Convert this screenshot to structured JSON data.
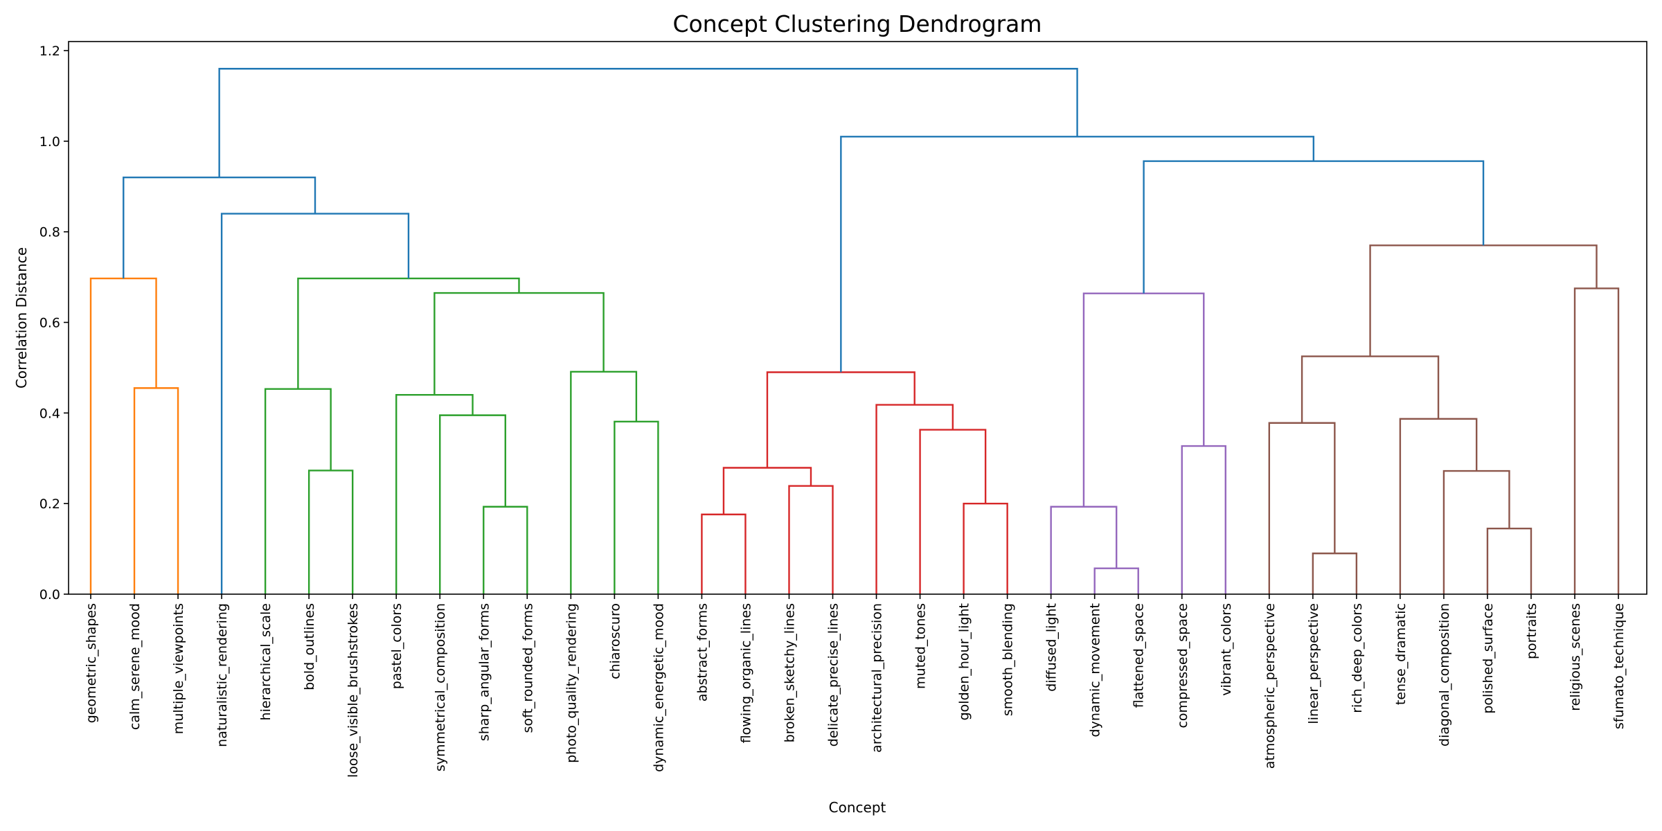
{
  "chart_data": {
    "type": "dendrogram",
    "title": "Concept Clustering Dendrogram",
    "xlabel": "Concept",
    "ylabel": "Correlation Distance",
    "ylim": [
      0,
      1.22
    ],
    "yticks": [
      "0.0",
      "0.2",
      "0.4",
      "0.6",
      "0.8",
      "1.0",
      "1.2"
    ],
    "ytick_values": [
      0.0,
      0.2,
      0.4,
      0.6,
      0.8,
      1.0,
      1.2
    ],
    "grid": false,
    "leaves": [
      "geometric_shapes",
      "calm_serene_mood",
      "multiple_viewpoints",
      "naturalistic_rendering",
      "hierarchical_scale",
      "bold_outlines",
      "loose_visible_brushstrokes",
      "pastel_colors",
      "symmetrical_composition",
      "sharp_angular_forms",
      "soft_rounded_forms",
      "photo_quality_rendering",
      "chiaroscuro",
      "dynamic_energetic_mood",
      "abstract_forms",
      "flowing_organic_lines",
      "broken_sketchy_lines",
      "delicate_precise_lines",
      "architectural_precision",
      "muted_tones",
      "golden_hour_light",
      "smooth_blending",
      "diffused_light",
      "dynamic_movement",
      "flattened_space",
      "compressed_space",
      "vibrant_colors",
      "atmospheric_perspective",
      "linear_perspective",
      "rich_deep_colors",
      "tense_dramatic",
      "diagonal_composition",
      "polished_surface",
      "portraits",
      "religious_scenes",
      "sfumato_technique"
    ],
    "colors": {
      "orange": "#ff7f0e",
      "green": "#2ca02c",
      "red": "#d62728",
      "purple": "#9467bd",
      "brown": "#8c564b",
      "blue": "#1f77b4"
    },
    "merges": [
      {
        "a": "geometric_shapes",
        "b": "calm_serene_mood",
        "note": "leaf0"
      },
      {
        "id": "n_calm_multi",
        "left": "calm_serene_mood",
        "right": "multiple_viewpoints",
        "height": 0.455,
        "color": "orange"
      },
      {
        "id": "n_orange",
        "left": "geometric_shapes",
        "right": "n_calm_multi",
        "height": 0.697,
        "color": "orange"
      },
      {
        "id": "n_bold_loose",
        "left": "bold_outlines",
        "right": "loose_visible_brushstrokes",
        "height": 0.273,
        "color": "green"
      },
      {
        "id": "n_hier",
        "left": "hierarchical_scale",
        "right": "n_bold_loose",
        "height": 0.453,
        "color": "green"
      },
      {
        "id": "n_sharp_soft",
        "left": "sharp_angular_forms",
        "right": "soft_rounded_forms",
        "height": 0.193,
        "color": "green"
      },
      {
        "id": "n_sym",
        "left": "symmetrical_composition",
        "right": "n_sharp_soft",
        "height": 0.395,
        "color": "green"
      },
      {
        "id": "n_pastel",
        "left": "pastel_colors",
        "right": "n_sym",
        "height": 0.44,
        "color": "green"
      },
      {
        "id": "n_chiaro_dyn",
        "left": "chiaroscuro",
        "right": "dynamic_energetic_mood",
        "height": 0.381,
        "color": "green"
      },
      {
        "id": "n_photo",
        "left": "photo_quality_rendering",
        "right": "n_chiaro_dyn",
        "height": 0.491,
        "color": "green"
      },
      {
        "id": "n_g_right",
        "left": "n_pastel",
        "right": "n_photo",
        "height": 0.665,
        "color": "green"
      },
      {
        "id": "n_green",
        "left": "n_hier",
        "right": "n_g_right",
        "height": 0.697,
        "color": "green"
      },
      {
        "id": "n_natural",
        "left": "naturalistic_rendering",
        "right": "n_green",
        "height": 0.84,
        "color": "blue"
      },
      {
        "id": "n_left",
        "left": "n_orange",
        "right": "n_natural",
        "height": 0.92,
        "color": "blue"
      },
      {
        "id": "n_abs_flow",
        "left": "abstract_forms",
        "right": "flowing_organic_lines",
        "height": 0.176,
        "color": "red"
      },
      {
        "id": "n_broken_delicate",
        "left": "broken_sketchy_lines",
        "right": "delicate_precise_lines",
        "height": 0.239,
        "color": "red"
      },
      {
        "id": "n_lines",
        "left": "n_abs_flow",
        "right": "n_broken_delicate",
        "height": 0.279,
        "color": "red"
      },
      {
        "id": "n_golden_smooth",
        "left": "golden_hour_light",
        "right": "smooth_blending",
        "height": 0.2,
        "color": "red"
      },
      {
        "id": "n_muted",
        "left": "muted_tones",
        "right": "n_golden_smooth",
        "height": 0.363,
        "color": "red"
      },
      {
        "id": "n_arch",
        "left": "architectural_precision",
        "right": "n_muted",
        "height": 0.418,
        "color": "red"
      },
      {
        "id": "n_red",
        "left": "n_lines",
        "right": "n_arch",
        "height": 0.49,
        "color": "red"
      },
      {
        "id": "n_dynmov_flat",
        "left": "dynamic_movement",
        "right": "flattened_space",
        "height": 0.057,
        "color": "purple"
      },
      {
        "id": "n_diffused",
        "left": "diffused_light",
        "right": "n_dynmov_flat",
        "height": 0.193,
        "color": "purple"
      },
      {
        "id": "n_comp_vib",
        "left": "compressed_space",
        "right": "vibrant_colors",
        "height": 0.327,
        "color": "purple"
      },
      {
        "id": "n_purple",
        "left": "n_diffused",
        "right": "n_comp_vib",
        "height": 0.664,
        "color": "purple"
      },
      {
        "id": "n_linear_rich",
        "left": "linear_perspective",
        "right": "rich_deep_colors",
        "height": 0.09,
        "color": "brown"
      },
      {
        "id": "n_atmo",
        "left": "atmospheric_perspective",
        "right": "n_linear_rich",
        "height": 0.378,
        "color": "brown"
      },
      {
        "id": "n_pol_port",
        "left": "polished_surface",
        "right": "portraits",
        "height": 0.145,
        "color": "brown"
      },
      {
        "id": "n_diag",
        "left": "diagonal_composition",
        "right": "n_pol_port",
        "height": 0.272,
        "color": "brown"
      },
      {
        "id": "n_tense",
        "left": "tense_dramatic",
        "right": "n_diag",
        "height": 0.387,
        "color": "brown"
      },
      {
        "id": "n_b_mid",
        "left": "n_atmo",
        "right": "n_tense",
        "height": 0.525,
        "color": "brown"
      },
      {
        "id": "n_relig_sfum",
        "left": "religious_scenes",
        "right": "sfumato_technique",
        "height": 0.675,
        "color": "brown"
      },
      {
        "id": "n_brown",
        "left": "n_b_mid",
        "right": "n_relig_sfum",
        "height": 0.77,
        "color": "brown"
      },
      {
        "id": "n_purple_brown",
        "left": "n_purple",
        "right": "n_brown",
        "height": 0.956,
        "color": "blue"
      },
      {
        "id": "n_right",
        "left": "n_red",
        "right": "n_purple_brown",
        "height": 1.01,
        "color": "blue"
      },
      {
        "id": "n_root",
        "left": "n_left",
        "right": "n_right",
        "height": 1.16,
        "color": "blue"
      }
    ]
  }
}
